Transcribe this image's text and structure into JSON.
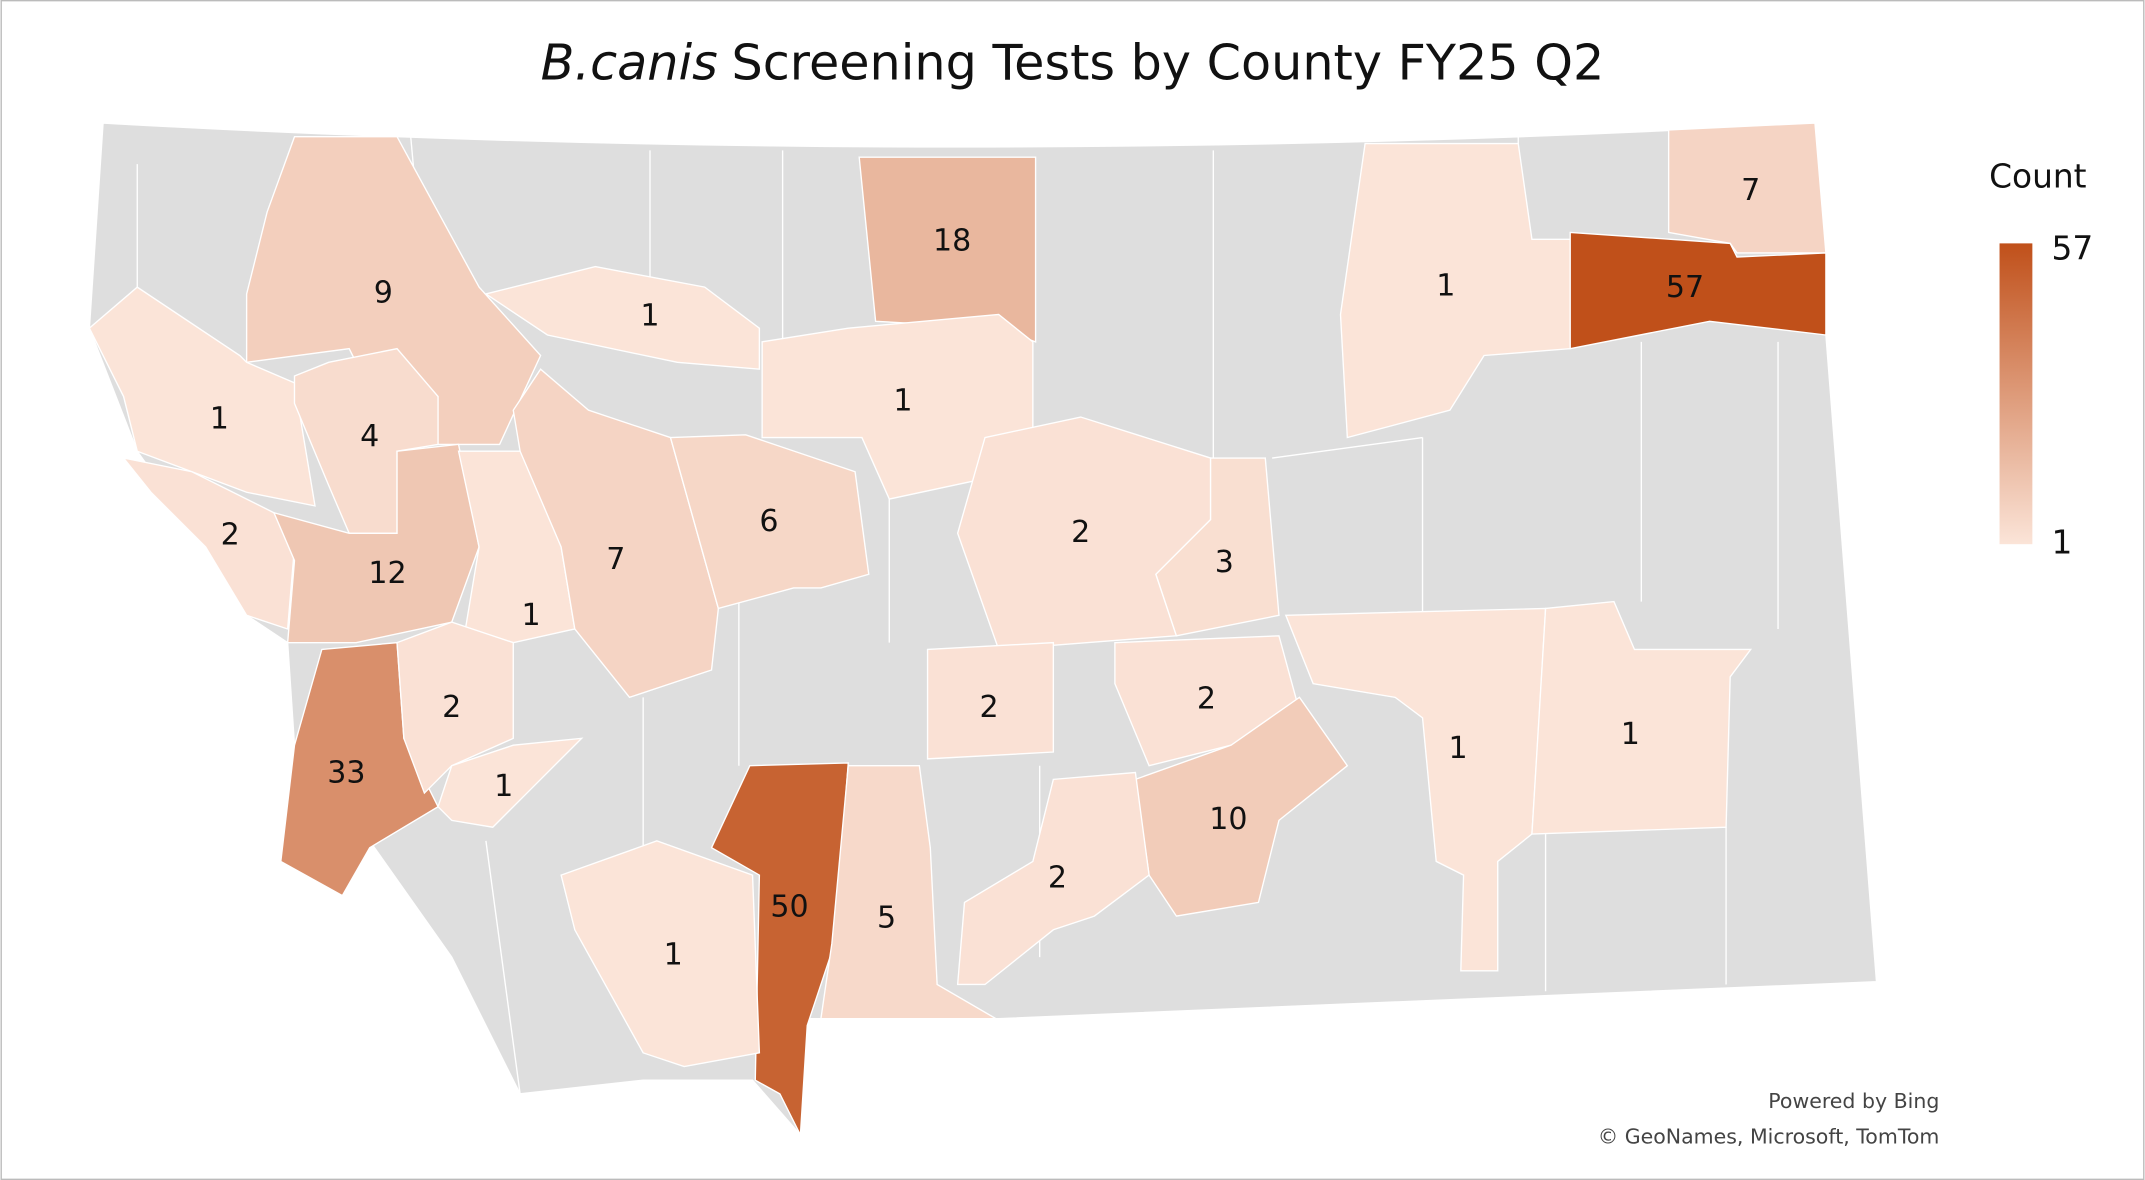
{
  "map_data": {
    "type": "choropleth",
    "title_italic": "B.canis",
    "title": "Screening Tests by County FY25 Q2",
    "values": [
      9,
      1,
      18,
      1,
      1,
      7,
      57,
      1,
      4,
      2,
      12,
      33,
      1,
      7,
      6,
      2,
      3,
      2,
      1,
      2,
      2,
      10,
      50,
      5,
      2,
      1,
      1,
      1
    ],
    "legend": {
      "title": "Count",
      "max": 57,
      "min": 1,
      "color_low": "#fbe4d8",
      "color_high": "#c0501a"
    },
    "no_data_color": "#dedede",
    "attribution": [
      "Powered by Bing",
      "© GeoNames, Microsoft, TomTom"
    ]
  }
}
